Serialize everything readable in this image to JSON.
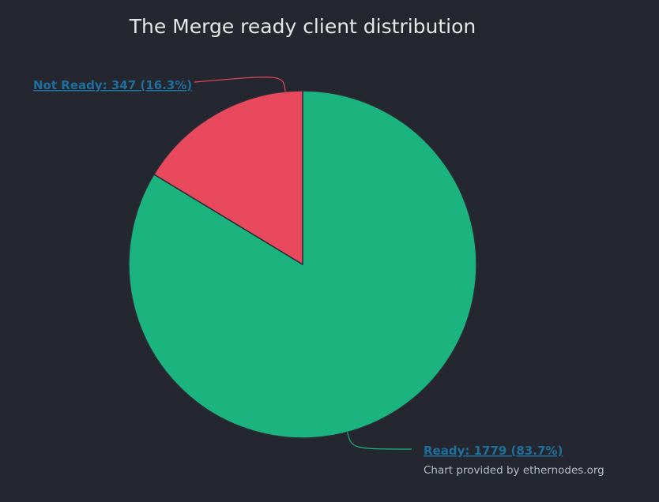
{
  "chart_data": {
    "type": "pie",
    "title": "The Merge ready client distribution",
    "slices": [
      {
        "name": "Ready",
        "value": 1779,
        "percent": 83.7,
        "color": "#1bb47f",
        "label": "Ready: 1779 (83.7%)"
      },
      {
        "name": "Not Ready",
        "value": 347,
        "percent": 16.3,
        "color": "#e8495c",
        "label": "Not Ready: 347 (16.3%)"
      }
    ],
    "credit": "Chart provided by ethernodes.org",
    "label_color": "#1f6f9c",
    "background_color": "#24272f"
  }
}
